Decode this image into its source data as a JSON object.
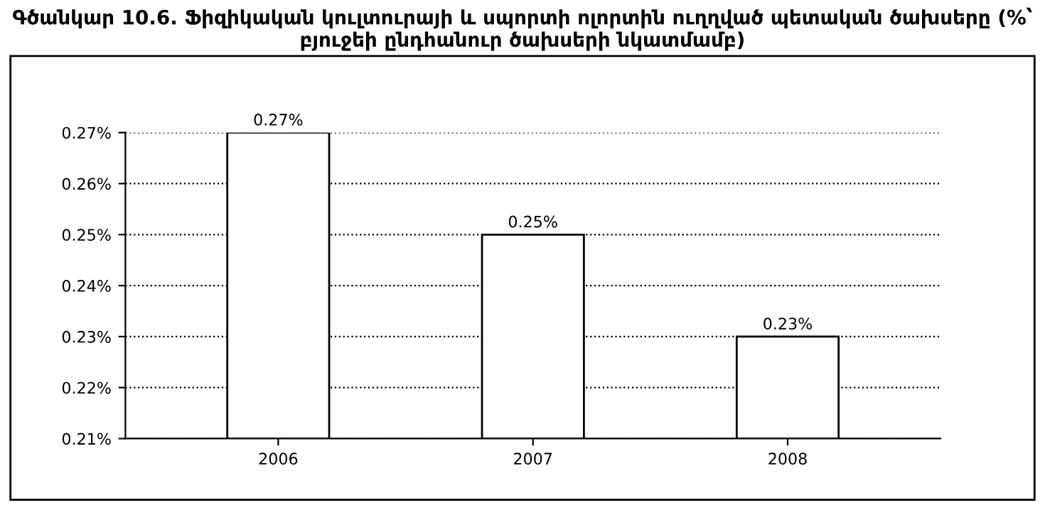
{
  "chart_data": {
    "type": "bar",
    "title": "Գծանկար 10.6. Ֆիզիկական կուլտուրայի և սպորտի ոլորտին ուղղված պետական ծախսերը (%՝ բյուջեի ընդհանուր ծախսերի նկատմամբ)",
    "categories": [
      "2006",
      "2007",
      "2008"
    ],
    "values": [
      0.27,
      0.25,
      0.23
    ],
    "value_labels": [
      "0.27%",
      "0.25%",
      "0.23%"
    ],
    "color": "#ffffff",
    "ylim": [
      0.21,
      0.27
    ],
    "yticks": [
      {
        "value": 0.21,
        "label": "0.21%"
      },
      {
        "value": 0.22,
        "label": "0.22%"
      },
      {
        "value": 0.23,
        "label": "0.23%"
      },
      {
        "value": 0.24,
        "label": "0.24%"
      },
      {
        "value": 0.25,
        "label": "0.25%"
      },
      {
        "value": 0.26,
        "label": "0.26%"
      },
      {
        "value": 0.27,
        "label": "0.27%"
      }
    ],
    "grid": "y",
    "line_style": "dotted"
  }
}
